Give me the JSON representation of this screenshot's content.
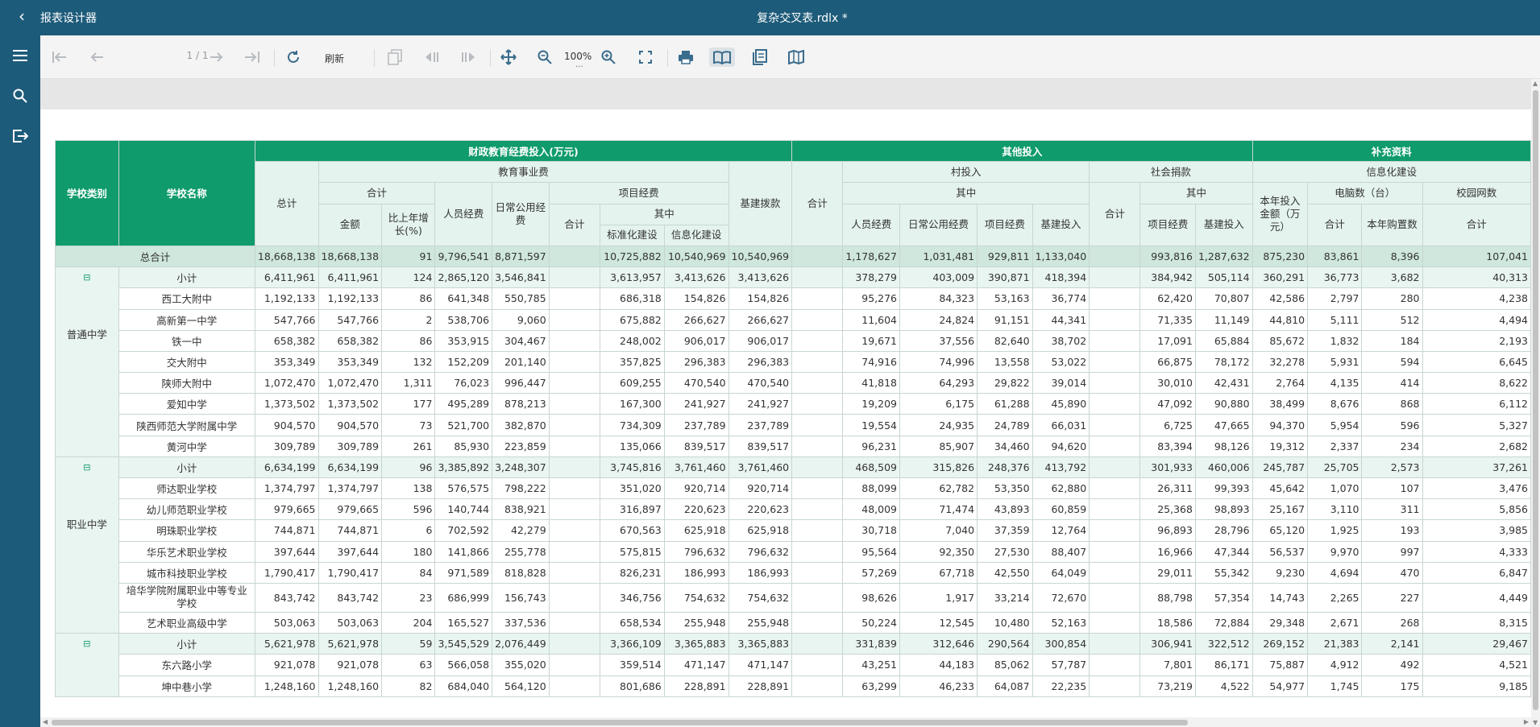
{
  "app": {
    "title": "报表设计器",
    "document": "复杂交叉表.rdlx *"
  },
  "toolbar": {
    "page_indicator": "1 / 1",
    "refresh_label": "刷新",
    "zoom": "100%",
    "zoom_more": "..."
  },
  "table": {
    "headers": {
      "school_type": "学校类别",
      "school_name": "学校名称",
      "g1": "财政教育经费投入(万元)",
      "g2": "其他投入",
      "g3": "补充资料",
      "total": "总计",
      "edu": "教育事业费",
      "edu_sum": "合计",
      "amount": "金额",
      "yoy": "比上年增长(%)",
      "staff": "人员经费",
      "daily": "日常公用经费",
      "project": "项目经费",
      "project_sum": "合计",
      "among": "其中",
      "std": "标准化建设",
      "info": "信息化建设",
      "infra": "基建拨款",
      "other_sum": "合计",
      "village": "村投入",
      "v_among": "其中",
      "v_staff": "人员经费",
      "v_daily": "日常公用经费",
      "v_project": "项目经费",
      "v_infra": "基建投入",
      "social": "社会捐款",
      "s_sum": "合计",
      "s_among": "其中",
      "s_project": "项目经费",
      "s_infra": "基建投入",
      "supp_info": "信息化建设",
      "year_invest": "本年投入金额（万元）",
      "pc": "电脑数（台）",
      "pc_sum": "合计",
      "pc_new": "本年购置数",
      "campus": "校园网数",
      "campus_sum": "合计"
    },
    "total_row": {
      "label": "总合计",
      "cells": [
        "18,668,138",
        "18,668,138",
        "91",
        "9,796,541",
        "8,871,597",
        "",
        "10,725,882",
        "10,540,969",
        "10,540,969",
        "",
        "1,178,627",
        "1,031,481",
        "929,811",
        "1,133,040",
        "",
        "993,816",
        "1,287,632",
        "875,230",
        "83,861",
        "8,396",
        "107,041"
      ]
    },
    "groups": [
      {
        "category": "普通中学",
        "toggle": "⊟",
        "subtotal": {
          "label": "小计",
          "cells": [
            "6,411,961",
            "6,411,961",
            "124",
            "2,865,120",
            "3,546,841",
            "",
            "3,613,957",
            "3,413,626",
            "3,413,626",
            "",
            "378,279",
            "403,009",
            "390,871",
            "418,394",
            "",
            "384,942",
            "505,114",
            "360,291",
            "36,773",
            "3,682",
            "40,313"
          ]
        },
        "rows": [
          {
            "name": "西工大附中",
            "cells": [
              "1,192,133",
              "1,192,133",
              "86",
              "641,348",
              "550,785",
              "",
              "686,318",
              "154,826",
              "154,826",
              "",
              "95,276",
              "84,323",
              "53,163",
              "36,774",
              "",
              "62,420",
              "70,807",
              "42,586",
              "2,797",
              "280",
              "4,238"
            ]
          },
          {
            "name": "高新第一中学",
            "cells": [
              "547,766",
              "547,766",
              "2",
              "538,706",
              "9,060",
              "",
              "675,882",
              "266,627",
              "266,627",
              "",
              "11,604",
              "24,824",
              "91,151",
              "44,341",
              "",
              "71,335",
              "11,149",
              "44,810",
              "5,111",
              "512",
              "4,494"
            ]
          },
          {
            "name": "铁一中",
            "cells": [
              "658,382",
              "658,382",
              "86",
              "353,915",
              "304,467",
              "",
              "248,002",
              "906,017",
              "906,017",
              "",
              "19,671",
              "37,556",
              "82,640",
              "38,702",
              "",
              "17,091",
              "65,884",
              "85,672",
              "1,832",
              "184",
              "2,193"
            ]
          },
          {
            "name": "交大附中",
            "cells": [
              "353,349",
              "353,349",
              "132",
              "152,209",
              "201,140",
              "",
              "357,825",
              "296,383",
              "296,383",
              "",
              "74,916",
              "74,996",
              "13,558",
              "53,022",
              "",
              "66,875",
              "78,172",
              "32,278",
              "5,931",
              "594",
              "6,645"
            ]
          },
          {
            "name": "陕师大附中",
            "cells": [
              "1,072,470",
              "1,072,470",
              "1,311",
              "76,023",
              "996,447",
              "",
              "609,255",
              "470,540",
              "470,540",
              "",
              "41,818",
              "64,293",
              "29,822",
              "39,014",
              "",
              "30,010",
              "42,431",
              "2,764",
              "4,135",
              "414",
              "8,622"
            ]
          },
          {
            "name": "爱知中学",
            "cells": [
              "1,373,502",
              "1,373,502",
              "177",
              "495,289",
              "878,213",
              "",
              "167,300",
              "241,927",
              "241,927",
              "",
              "19,209",
              "6,175",
              "61,288",
              "45,890",
              "",
              "47,092",
              "90,880",
              "38,499",
              "8,676",
              "868",
              "6,112"
            ]
          },
          {
            "name": "陕西师范大学附属中学",
            "cells": [
              "904,570",
              "904,570",
              "73",
              "521,700",
              "382,870",
              "",
              "734,309",
              "237,789",
              "237,789",
              "",
              "19,554",
              "24,935",
              "24,789",
              "66,031",
              "",
              "6,725",
              "47,665",
              "94,370",
              "5,954",
              "596",
              "5,327"
            ]
          },
          {
            "name": "黄河中学",
            "cells": [
              "309,789",
              "309,789",
              "261",
              "85,930",
              "223,859",
              "",
              "135,066",
              "839,517",
              "839,517",
              "",
              "96,231",
              "85,907",
              "34,460",
              "94,620",
              "",
              "83,394",
              "98,126",
              "19,312",
              "2,337",
              "234",
              "2,682"
            ]
          }
        ]
      },
      {
        "category": "职业中学",
        "toggle": "⊟",
        "subtotal": {
          "label": "小计",
          "cells": [
            "6,634,199",
            "6,634,199",
            "96",
            "3,385,892",
            "3,248,307",
            "",
            "3,745,816",
            "3,761,460",
            "3,761,460",
            "",
            "468,509",
            "315,826",
            "248,376",
            "413,792",
            "",
            "301,933",
            "460,006",
            "245,787",
            "25,705",
            "2,573",
            "37,261"
          ]
        },
        "rows": [
          {
            "name": "师达职业学校",
            "cells": [
              "1,374,797",
              "1,374,797",
              "138",
              "576,575",
              "798,222",
              "",
              "351,020",
              "920,714",
              "920,714",
              "",
              "88,099",
              "62,782",
              "53,350",
              "62,880",
              "",
              "26,311",
              "99,393",
              "45,642",
              "1,070",
              "107",
              "3,476"
            ]
          },
          {
            "name": "幼儿师范职业学校",
            "cells": [
              "979,665",
              "979,665",
              "596",
              "140,744",
              "838,921",
              "",
              "316,897",
              "220,623",
              "220,623",
              "",
              "48,009",
              "71,474",
              "43,893",
              "60,859",
              "",
              "25,368",
              "98,893",
              "25,167",
              "3,110",
              "311",
              "5,856"
            ]
          },
          {
            "name": "明珠职业学校",
            "cells": [
              "744,871",
              "744,871",
              "6",
              "702,592",
              "42,279",
              "",
              "670,563",
              "625,918",
              "625,918",
              "",
              "30,718",
              "7,040",
              "37,359",
              "12,764",
              "",
              "96,893",
              "28,796",
              "65,120",
              "1,925",
              "193",
              "3,985"
            ]
          },
          {
            "name": "华乐艺术职业学校",
            "cells": [
              "397,644",
              "397,644",
              "180",
              "141,866",
              "255,778",
              "",
              "575,815",
              "796,632",
              "796,632",
              "",
              "95,564",
              "92,350",
              "27,530",
              "88,407",
              "",
              "16,966",
              "47,344",
              "56,537",
              "9,970",
              "997",
              "4,333"
            ]
          },
          {
            "name": "城市科技职业学校",
            "cells": [
              "1,790,417",
              "1,790,417",
              "84",
              "971,589",
              "818,828",
              "",
              "826,231",
              "186,993",
              "186,993",
              "",
              "57,269",
              "67,718",
              "42,550",
              "64,049",
              "",
              "29,011",
              "55,342",
              "9,230",
              "4,694",
              "470",
              "6,847"
            ]
          },
          {
            "name": "培华学院附属职业中等专业学校",
            "tall": true,
            "cells": [
              "843,742",
              "843,742",
              "23",
              "686,999",
              "156,743",
              "",
              "346,756",
              "754,632",
              "754,632",
              "",
              "98,626",
              "1,917",
              "33,214",
              "72,670",
              "",
              "88,798",
              "57,354",
              "14,743",
              "2,265",
              "227",
              "4,449"
            ]
          },
          {
            "name": "艺术职业高级中学",
            "cells": [
              "503,063",
              "503,063",
              "204",
              "165,527",
              "337,536",
              "",
              "658,534",
              "255,948",
              "255,948",
              "",
              "50,224",
              "12,545",
              "10,480",
              "52,163",
              "",
              "18,586",
              "72,884",
              "29,348",
              "2,671",
              "268",
              "8,315"
            ]
          }
        ]
      },
      {
        "category": "",
        "toggle": "⊟",
        "subtotal": {
          "label": "小计",
          "cells": [
            "5,621,978",
            "5,621,978",
            "59",
            "3,545,529",
            "2,076,449",
            "",
            "3,366,109",
            "3,365,883",
            "3,365,883",
            "",
            "331,839",
            "312,646",
            "290,564",
            "300,854",
            "",
            "306,941",
            "322,512",
            "269,152",
            "21,383",
            "2,141",
            "29,467"
          ]
        },
        "rows": [
          {
            "name": "东六路小学",
            "cells": [
              "921,078",
              "921,078",
              "63",
              "566,058",
              "355,020",
              "",
              "359,514",
              "471,147",
              "471,147",
              "",
              "43,251",
              "44,183",
              "85,062",
              "57,787",
              "",
              "7,801",
              "86,171",
              "75,887",
              "4,912",
              "492",
              "4,521"
            ]
          },
          {
            "name": "坤中巷小学",
            "cells": [
              "1,248,160",
              "1,248,160",
              "82",
              "684,040",
              "564,120",
              "",
              "801,686",
              "228,891",
              "228,891",
              "",
              "63,299",
              "46,233",
              "64,087",
              "22,235",
              "",
              "73,219",
              "4,522",
              "54,977",
              "1,745",
              "175",
              "9,185"
            ]
          }
        ]
      }
    ]
  }
}
